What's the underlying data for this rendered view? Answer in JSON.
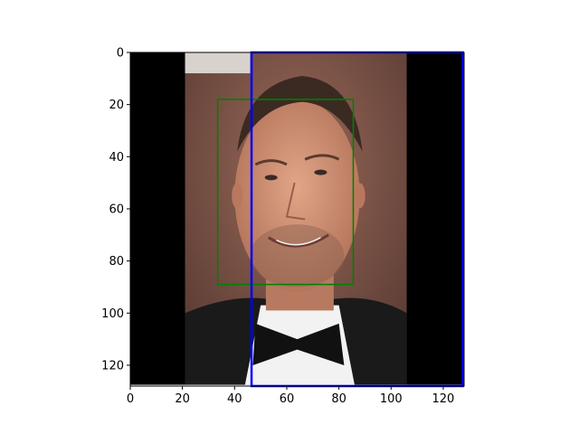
{
  "chart_data": {
    "type": "image",
    "title": "",
    "xlabel": "",
    "ylabel": "",
    "xlim": [
      0,
      128
    ],
    "ylim": [
      128,
      0
    ],
    "x_ticks": [
      0,
      20,
      40,
      60,
      80,
      100,
      120
    ],
    "y_ticks": [
      0,
      20,
      40,
      60,
      80,
      100,
      120
    ],
    "image": {
      "description_colors": {
        "letterbox": "#000000",
        "backdrop": "#7a5548",
        "skin": "#c98c6e",
        "hair": "#3b2a22",
        "suit": "#1a1a1a",
        "shirt": "#f2f2f2"
      },
      "photo_x_range": [
        21,
        106
      ]
    },
    "annotations": [
      {
        "name": "green-box",
        "color": "#008000",
        "x0": 33.5,
        "y0": 18,
        "x1": 85.5,
        "y1": 89
      },
      {
        "name": "blue-box",
        "color": "#0000ff",
        "x0": 46.5,
        "y0": 0,
        "x1": 127.5,
        "y1": 128
      }
    ]
  }
}
